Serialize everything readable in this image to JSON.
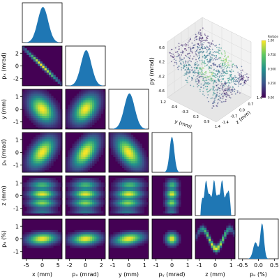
{
  "chart_data": [
    {
      "type": "heatmap",
      "kind": "corner-plot",
      "diagonal_type": "histogram",
      "lower_type": "2d-density",
      "variables": [
        {
          "key": "x",
          "xlabel": "x (mm)",
          "ylabel": "",
          "ticks": [
            "-5",
            "0",
            "5"
          ],
          "range": [
            -5,
            5
          ],
          "center": 0.0,
          "width": 3.4,
          "hist": "bell"
        },
        {
          "key": "px",
          "xlabel": "pₓ (mrad)",
          "ylabel": "pₓ (mrad)",
          "ticks": [
            "-2",
            "0",
            "2"
          ],
          "range": [
            -2.4,
            2.4
          ],
          "center": -0.1,
          "width": 1.5,
          "hist": "bell"
        },
        {
          "key": "y",
          "xlabel": "y (mm)",
          "ylabel": "y (mm)",
          "ticks": [
            "-1",
            "0",
            "1"
          ],
          "range": [
            -1.6,
            1.6
          ],
          "center": 0.0,
          "width": 0.55,
          "hist": "bell"
        },
        {
          "key": "py",
          "xlabel": "pᵧ (mrad)",
          "ylabel": "pᵧ (mrad)",
          "ticks": [
            "-1",
            "0",
            "1"
          ],
          "range": [
            -1.3,
            1.3
          ],
          "center": 0.0,
          "width": 0.35,
          "hist": "peak"
        },
        {
          "key": "z",
          "xlabel": "z (mm)",
          "ylabel": "z (mm)",
          "ticks": [
            "-1",
            "0",
            "1"
          ],
          "range": [
            -1.4,
            1.4
          ],
          "center": 0.0,
          "width": 0.9,
          "hist": "multi"
        },
        {
          "key": "pz",
          "xlabel": "pᵤ (%)",
          "ylabel": "pᵤ (%)",
          "ticks": [
            "-0.5",
            "0.0",
            "0.5"
          ],
          "range": [
            -0.8,
            0.8
          ],
          "center": 0.0,
          "width": 0.25,
          "hist": "skew"
        }
      ],
      "yticks": {
        "px": [
          "2",
          "0",
          "-2"
        ],
        "y": [
          "1",
          "0",
          "-1"
        ],
        "py": [
          "1",
          "0",
          "-1"
        ],
        "z": [
          "1",
          "0",
          "-1"
        ],
        "pz": [
          "1",
          "0",
          "-1"
        ]
      },
      "hist_color": "#1f77b4",
      "cmap": [
        "#440154",
        "#3b528b",
        "#21918c",
        "#5ec962",
        "#fde725"
      ]
    },
    {
      "type": "scatter",
      "projection": "3d",
      "axes": {
        "x": "y (mm)",
        "y": "z (mm)",
        "z": "py (mrad)"
      },
      "xticks": [
        "1.2",
        "-0.9",
        "-0.3",
        "0.3",
        "0.9",
        "1.4"
      ],
      "yticks": [
        "-1.4",
        "-0.7",
        "0.0",
        "0.7",
        "1.4"
      ],
      "zticks": [
        "0.6",
        "0.2",
        "-0.2",
        "-0.6"
      ],
      "colorbar": {
        "label": "Particle Density",
        "ticks": [
          "1.00",
          "0.750",
          "0.500",
          "0.250",
          "0.00"
        ]
      },
      "cmap": [
        "#440154",
        "#3b528b",
        "#21918c",
        "#5ec962",
        "#fde725"
      ]
    }
  ]
}
